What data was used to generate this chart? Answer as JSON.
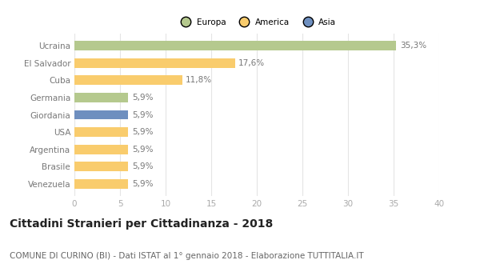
{
  "categories": [
    "Ucraina",
    "El Salvador",
    "Cuba",
    "Germania",
    "Giordania",
    "USA",
    "Argentina",
    "Brasile",
    "Venezuela"
  ],
  "values": [
    35.3,
    17.6,
    11.8,
    5.9,
    5.9,
    5.9,
    5.9,
    5.9,
    5.9
  ],
  "labels": [
    "35,3%",
    "17,6%",
    "11,8%",
    "5,9%",
    "5,9%",
    "5,9%",
    "5,9%",
    "5,9%",
    "5,9%"
  ],
  "colors": [
    "#b5c98e",
    "#f9cc6d",
    "#f9cc6d",
    "#b5c98e",
    "#6e8fbf",
    "#f9cc6d",
    "#f9cc6d",
    "#f9cc6d",
    "#f9cc6d"
  ],
  "legend_labels": [
    "Europa",
    "America",
    "Asia"
  ],
  "legend_colors": [
    "#b5c98e",
    "#f9cc6d",
    "#6e8fbf"
  ],
  "title": "Cittadini Stranieri per Cittadinanza - 2018",
  "subtitle": "COMUNE DI CURINO (BI) - Dati ISTAT al 1° gennaio 2018 - Elaborazione TUTTITALIA.IT",
  "xlim": [
    0,
    40
  ],
  "xticks": [
    0,
    5,
    10,
    15,
    20,
    25,
    30,
    35,
    40
  ],
  "background_color": "#ffffff",
  "grid_color": "#e5e5e5",
  "bar_height": 0.55,
  "label_fontsize": 7.5,
  "tick_fontsize": 7.5,
  "title_fontsize": 10,
  "subtitle_fontsize": 7.5
}
